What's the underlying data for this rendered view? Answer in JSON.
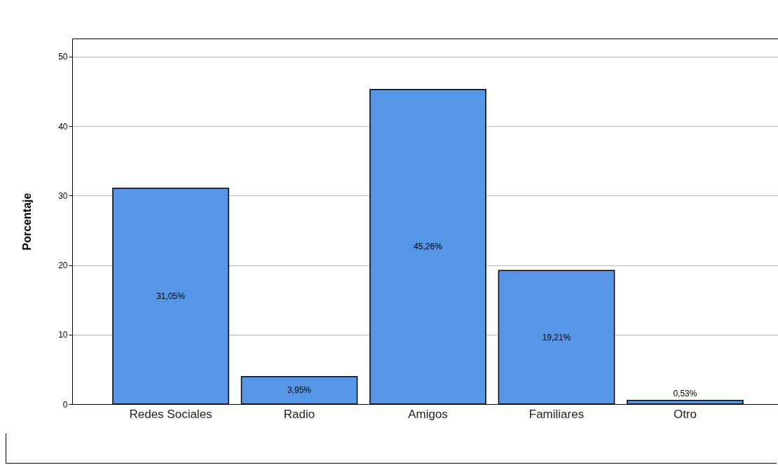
{
  "chart_data": {
    "type": "bar",
    "ylabel": "Porcentaje",
    "categories": [
      "Redes Sociales",
      "Radio",
      "Amigos",
      "Familiares",
      "Otro"
    ],
    "values": [
      31.05,
      3.95,
      45.26,
      19.21,
      0.53
    ],
    "value_labels": [
      "31,05%",
      "3,95%",
      "45,26%",
      "19,21%",
      "0,53%"
    ],
    "color": "#5596e6",
    "ylim": [
      0,
      52.6
    ],
    "yticks": [
      0,
      10,
      20,
      30,
      40,
      50
    ],
    "grid": "y"
  }
}
